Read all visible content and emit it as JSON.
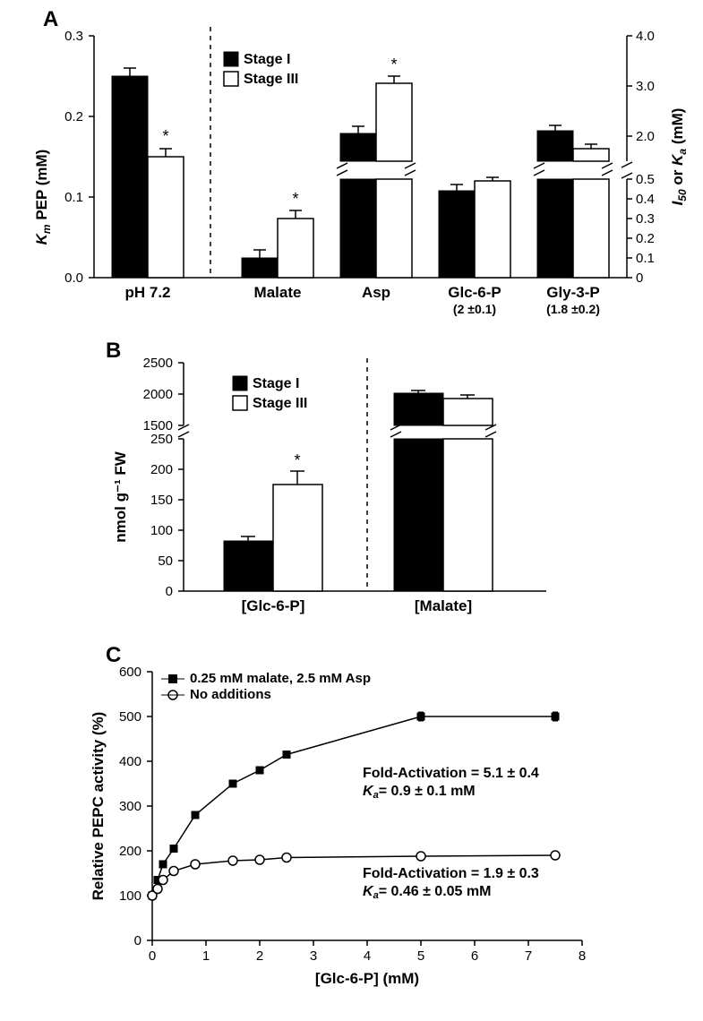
{
  "panelA": {
    "label": "A",
    "left_axis_title": "Kₘ PEP (mM)",
    "right_axis_title": "I₅₀ or Kₐ (mM)",
    "left_ylim": [
      0,
      0.3
    ],
    "left_ticks": [
      0.0,
      0.1,
      0.2,
      0.3
    ],
    "right_ylim_lower": [
      0,
      0.5
    ],
    "right_lower_ticks": [
      0,
      0.1,
      0.2,
      0.3,
      0.4,
      0.5
    ],
    "right_ylim_upper": [
      1.5,
      4.0
    ],
    "right_upper_ticks": [
      2.0,
      3.0,
      4.0
    ],
    "legend": {
      "stage1": "Stage I",
      "stage3": "Stage III"
    },
    "left_bars": {
      "label": "pH 7.2",
      "stage1": 0.25,
      "stage1_err": 0.01,
      "stage3": 0.15,
      "stage3_err": 0.01,
      "sig": true
    },
    "right_groups": [
      {
        "label": "Malate",
        "sub": "",
        "stage1": 0.1,
        "stage1_err": 0.04,
        "stage3": 0.3,
        "stage3_err": 0.04,
        "sig": true
      },
      {
        "label": "Asp",
        "sub": "",
        "stage1": 2.05,
        "stage1_err": 0.15,
        "stage3": 3.05,
        "stage3_err": 0.15,
        "sig": true
      },
      {
        "label": "Glc-6-P",
        "sub": "(2 ±0.1)",
        "stage1": 0.44,
        "stage1_err": 0.03,
        "stage3": 0.49,
        "stage3_err": 0.02,
        "sig": false
      },
      {
        "label": "Gly-3-P",
        "sub": "(1.8 ±0.2)",
        "stage1": 2.1,
        "stage1_err": 0.1,
        "stage3": 1.75,
        "stage3_err": 0.08,
        "sig": false
      }
    ]
  },
  "panelB": {
    "label": "B",
    "y_axis_title": "nmol g⁻¹ FW",
    "lower_ylim": [
      0,
      250
    ],
    "lower_ticks": [
      0,
      50,
      100,
      150,
      200,
      250
    ],
    "upper_ylim": [
      1500,
      2500
    ],
    "upper_ticks": [
      1500,
      2000,
      2500
    ],
    "legend": {
      "stage1": "Stage I",
      "stage3": "Stage III"
    },
    "left_group": {
      "label": "[Glc-6-P]",
      "stage1": 82,
      "stage1_err": 7,
      "stage3": 175,
      "stage3_err": 22,
      "sig": true
    },
    "right_group": {
      "label": "[Malate]",
      "stage1": 2020,
      "stage1_err": 40,
      "stage3": 1930,
      "stage3_err": 50,
      "sig": false
    }
  },
  "panelC": {
    "label": "C",
    "x_axis_title": "[Glc-6-P]  (mM)",
    "y_axis_title": "Relative PEPC activity (%)",
    "xlim": [
      0,
      8
    ],
    "xticks": [
      0,
      1,
      2,
      3,
      4,
      5,
      6,
      7,
      8
    ],
    "ylim": [
      0,
      600
    ],
    "yticks": [
      0,
      100,
      200,
      300,
      400,
      500,
      600
    ],
    "legend": {
      "series1": "0.25 mM malate, 2.5 mM Asp",
      "series2": "No additions"
    },
    "series1": {
      "marker": "filled-square",
      "x": [
        0,
        0.1,
        0.2,
        0.4,
        0.8,
        1.5,
        2,
        2.5,
        5,
        7.5
      ],
      "y": [
        100,
        135,
        170,
        205,
        280,
        350,
        380,
        415,
        500,
        500
      ],
      "err": [
        5,
        5,
        6,
        6,
        8,
        8,
        8,
        8,
        10,
        10
      ]
    },
    "series2": {
      "marker": "open-circle",
      "x": [
        0,
        0.1,
        0.2,
        0.4,
        0.8,
        1.5,
        2,
        2.5,
        5,
        7.5
      ],
      "y": [
        100,
        115,
        135,
        155,
        170,
        178,
        180,
        185,
        188,
        190
      ],
      "err": [
        4,
        4,
        5,
        5,
        5,
        5,
        6,
        6,
        6,
        6
      ]
    },
    "annot1_line1": "Fold-Activation = 5.1 ± 0.4",
    "annot1_line2": "Kₐ = 0.9 ± 0.1 mM",
    "annot2_line1": "Fold-Activation = 1.9 ± 0.3",
    "annot2_line2": "Kₐ = 0.46 ± 0.05 mM"
  },
  "colors": {
    "black": "#000000",
    "white": "#ffffff",
    "bg": "#ffffff"
  }
}
